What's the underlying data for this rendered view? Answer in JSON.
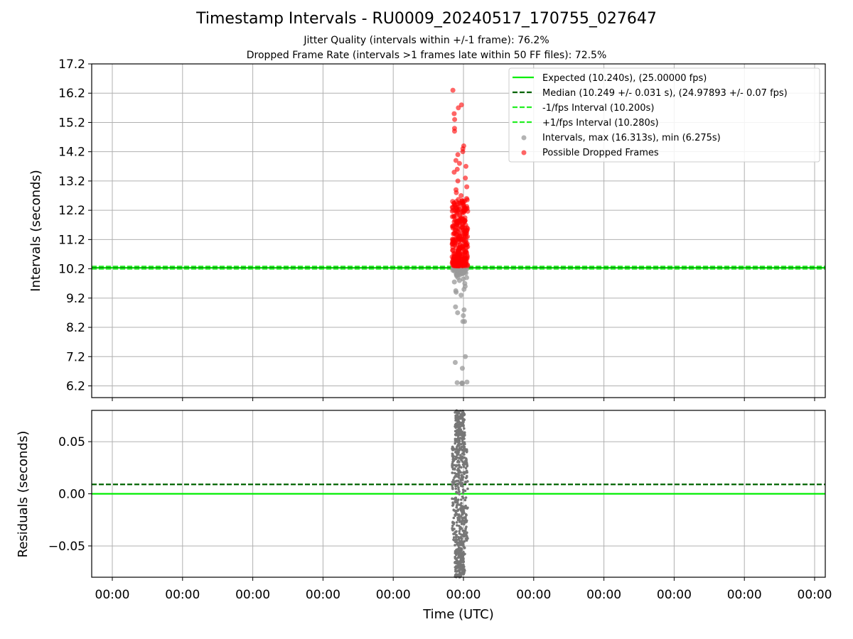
{
  "chart_data": [
    {
      "type": "scatter",
      "title": "Timestamp Intervals - RU0009_20240517_170755_027647",
      "subtitle_lines": [
        "Jitter Quality (intervals within +/-1 frame): 76.2%",
        "Dropped Frame Rate (intervals >1 frames late within 50 FF files): 72.5%"
      ],
      "xlabel": "",
      "ylabel": "Intervals (seconds)",
      "ylim": [
        5.8,
        17.2
      ],
      "yticks": [
        "6.2",
        "7.2",
        "8.2",
        "9.2",
        "10.2",
        "11.2",
        "12.2",
        "13.2",
        "14.2",
        "15.2",
        "16.2",
        "17.2"
      ],
      "grid": true,
      "legend_position": "top-right",
      "reference_lines": [
        {
          "name": "Expected (10.240s), (25.00000 fps)",
          "y": 10.24,
          "style": "solid",
          "color": "#00ee00"
        },
        {
          "name": "Median (10.249 +/- 0.031 s), (24.97893 +/- 0.07 fps)",
          "y": 10.249,
          "style": "dashed",
          "color": "#006400"
        },
        {
          "name": "-1/fps Interval (10.200s)",
          "y": 10.2,
          "style": "dashed",
          "color": "#22ee22"
        },
        {
          "name": "+1/fps Interval (10.280s)",
          "y": 10.28,
          "style": "dashed",
          "color": "#22ee22"
        }
      ],
      "series": [
        {
          "name": "Intervals, max (16.313s), min (6.275s)",
          "color": "#999999",
          "values": [
            6.3,
            6.31,
            6.29,
            6.33,
            6.28,
            6.8,
            7.0,
            7.2,
            8.4,
            8.4,
            8.6,
            8.7,
            8.8,
            8.9,
            9.3,
            9.4,
            9.45,
            9.5,
            9.6,
            9.7,
            9.75,
            9.8,
            9.85,
            9.9,
            9.95,
            10.0,
            10.05,
            10.1,
            10.15,
            10.18,
            10.2,
            10.22,
            10.24,
            10.26,
            10.1,
            10.0,
            9.9
          ]
        },
        {
          "name": "Possible Dropped Frames",
          "color": "#ff0000",
          "values": [
            16.3,
            15.8,
            15.7,
            15.5,
            15.3,
            15.0,
            14.9,
            14.4,
            14.3,
            14.2,
            14.1,
            13.9,
            13.8,
            13.7,
            13.6,
            13.5,
            13.3,
            13.2,
            13.0,
            12.9,
            12.8,
            12.7,
            12.6,
            12.5,
            12.4,
            12.3,
            12.2,
            12.1,
            12.0,
            11.9,
            11.8,
            11.7,
            11.6,
            11.5,
            11.4,
            11.3,
            11.2,
            11.1,
            11.0,
            10.9,
            10.8,
            10.7,
            10.6,
            10.5,
            10.4,
            10.35,
            10.3
          ]
        }
      ]
    },
    {
      "type": "scatter",
      "xlabel": "Time (UTC)",
      "ylabel": "Residuals (seconds)",
      "ylim": [
        -0.08,
        0.08
      ],
      "yticks": [
        "−0.05",
        "0.00",
        "0.05"
      ],
      "xticks": [
        "00:00",
        "00:00",
        "00:00",
        "00:00",
        "00:00",
        "00:00",
        "00:00",
        "00:00",
        "00:00",
        "00:00",
        "00:00"
      ],
      "grid": true,
      "reference_lines": [
        {
          "y": 0.0,
          "style": "solid",
          "color": "#00ee00"
        },
        {
          "y": 0.009,
          "style": "dashed",
          "color": "#006400"
        }
      ],
      "series": [
        {
          "color": "#777777",
          "y_range": [
            -0.08,
            0.08
          ]
        }
      ]
    }
  ]
}
